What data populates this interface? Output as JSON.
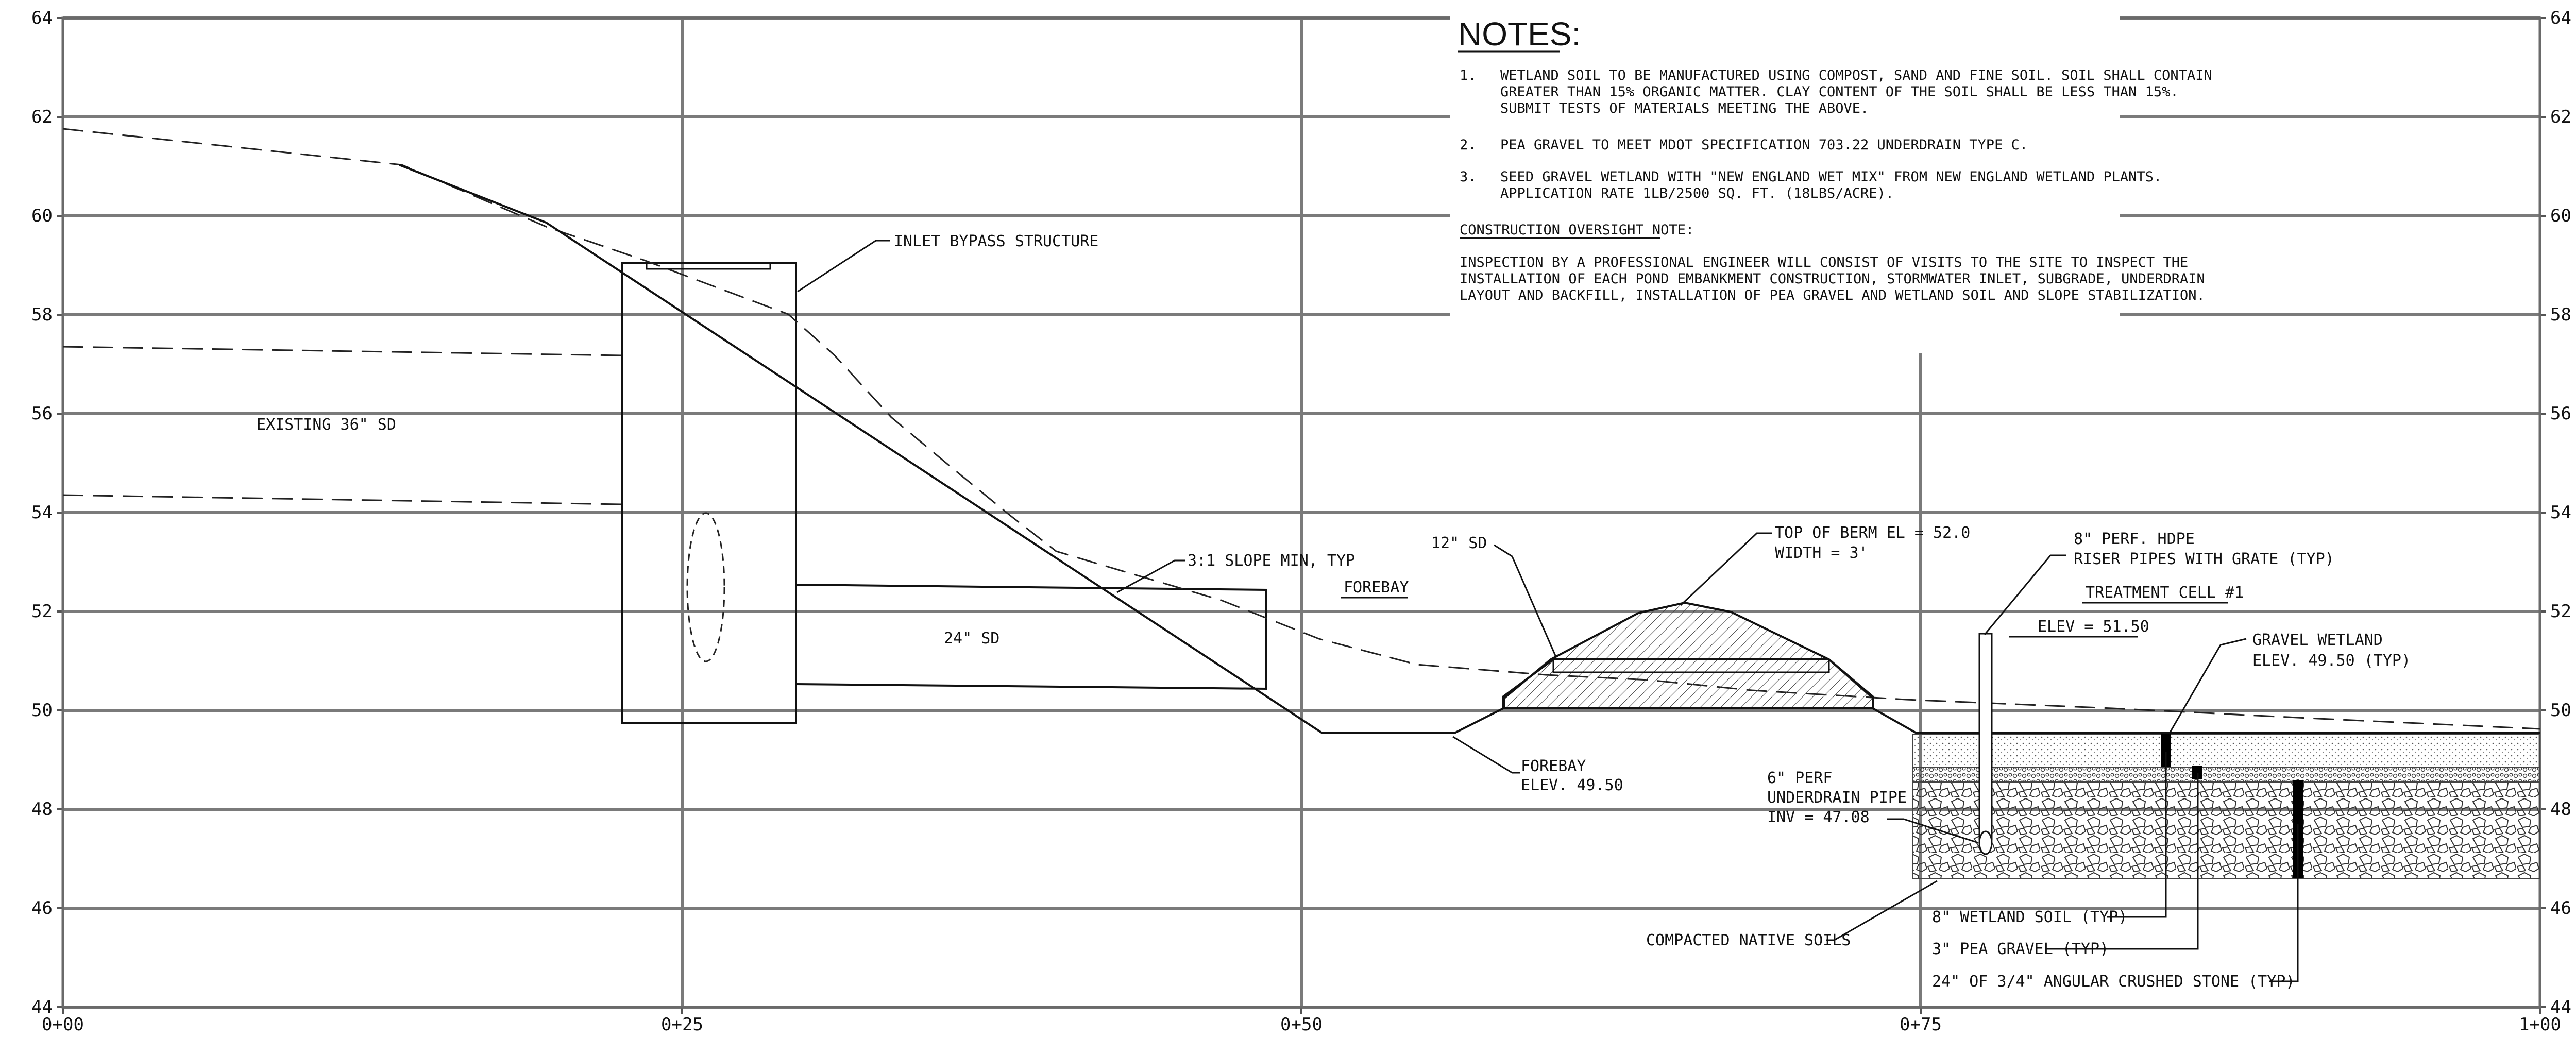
{
  "axes": {
    "y_ticks": [
      "64",
      "62",
      "60",
      "58",
      "56",
      "54",
      "52",
      "50",
      "48",
      "46",
      "44"
    ],
    "x_ticks": [
      "0+00",
      "0+25",
      "0+50",
      "0+75",
      "1+00"
    ]
  },
  "labels": {
    "inlet_bypass": "INLET BYPASS STRUCTURE",
    "existing_sd": "EXISTING 36\" SD",
    "slope": "3:1 SLOPE MIN, TYP",
    "sd24": "24\" SD",
    "sd12": "12\" SD",
    "forebay": "FOREBAY",
    "forebay_elev_1": "FOREBAY",
    "forebay_elev_2": "ELEV. 49.50",
    "berm_1": "TOP OF BERM EL = 52.0",
    "berm_2": "WIDTH = 3'",
    "riser_1": "8\" PERF. HDPE",
    "riser_2": "RISER PIPES WITH GRATE (TYP)",
    "treatment_cell": "TREATMENT CELL #1",
    "elev_riser": "ELEV = 51.50",
    "gravel_wetland_1": "GRAVEL WETLAND",
    "gravel_wetland_2": "ELEV. 49.50 (TYP)",
    "underdrain_1": "6\" PERF",
    "underdrain_2": "UNDERDRAIN PIPE",
    "underdrain_3": "INV = 47.08",
    "compacted": "COMPACTED NATIVE SOILS",
    "wetland_soil": "8\" WETLAND SOIL (TYP)",
    "pea_gravel": "3\" PEA GRAVEL (TYP)",
    "crushed_stone": "24\" OF 3/4\" ANGULAR CRUSHED STONE (TYP)"
  },
  "notes": {
    "title": "NOTES:",
    "items": [
      {
        "num": "1.",
        "lines": [
          "WETLAND SOIL TO BE MANUFACTURED USING COMPOST, SAND AND FINE SOIL. SOIL SHALL CONTAIN",
          "GREATER THAN 15% ORGANIC MATTER. CLAY CONTENT OF THE SOIL SHALL BE LESS THAN 15%.",
          "SUBMIT TESTS OF MATERIALS MEETING THE ABOVE."
        ]
      },
      {
        "num": "2.",
        "lines": [
          "PEA GRAVEL TO MEET MDOT SPECIFICATION 703.22 UNDERDRAIN TYPE C."
        ]
      },
      {
        "num": "3.",
        "lines": [
          "SEED GRAVEL WETLAND WITH \"NEW ENGLAND WET MIX\" FROM NEW ENGLAND WETLAND PLANTS.",
          "APPLICATION RATE 1LB/2500 SQ. FT. (18LBS/ACRE)."
        ]
      }
    ],
    "oversight_title": "CONSTRUCTION OVERSIGHT NOTE:",
    "oversight_lines": [
      "INSPECTION BY A PROFESSIONAL ENGINEER WILL CONSIST OF VISITS TO THE SITE TO INSPECT THE",
      "INSTALLATION OF EACH POND EMBANKMENT CONSTRUCTION, STORMWATER INLET, SUBGRADE, UNDERDRAIN",
      "LAYOUT AND BACKFILL, INSTALLATION OF PEA GRAVEL AND WETLAND SOIL AND SLOPE STABILIZATION."
    ]
  }
}
